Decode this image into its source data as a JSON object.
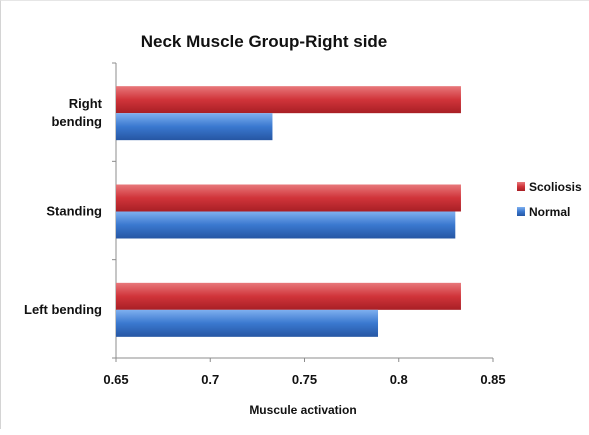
{
  "chart_data": {
    "type": "bar",
    "orientation": "horizontal",
    "title": "Neck Muscle Group-Right side",
    "xlabel": "Muscule activation",
    "ylabel": "",
    "xlim": [
      0.65,
      0.85
    ],
    "xticks": [
      "0.65",
      "0.7",
      "0.75",
      "0.8",
      "0.85"
    ],
    "categories": [
      {
        "lines": [
          "Right",
          "bending"
        ]
      },
      {
        "lines": [
          "Standing"
        ]
      },
      {
        "lines": [
          "Left bending"
        ]
      }
    ],
    "series": [
      {
        "name": "Scoliosis",
        "color": "#d0343a",
        "values": [
          0.833,
          0.833,
          0.833
        ]
      },
      {
        "name": "Normal",
        "color": "#3a78cf",
        "values": [
          0.733,
          0.83,
          0.789
        ]
      }
    ],
    "legend_position": "right",
    "grid": false
  }
}
